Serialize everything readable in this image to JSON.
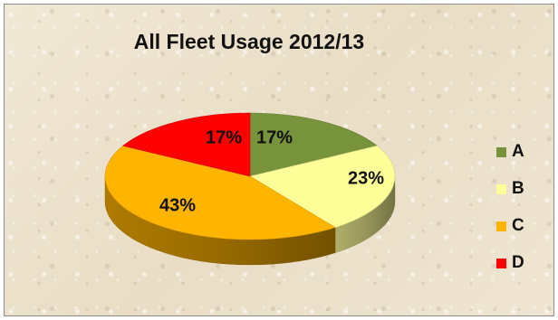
{
  "chart_data": {
    "type": "pie",
    "title": "All Fleet Usage 2012/13",
    "slices": [
      {
        "label": "A",
        "value": 17,
        "display": "17%",
        "color": "#77933c"
      },
      {
        "label": "B",
        "value": 23,
        "display": "23%",
        "color": "#ffff99"
      },
      {
        "label": "C",
        "value": 43,
        "display": "43%",
        "color": "#ffb400"
      },
      {
        "label": "D",
        "value": 17,
        "display": "17%",
        "color": "#ff0000"
      }
    ],
    "legend_position": "right",
    "style": "3d"
  }
}
